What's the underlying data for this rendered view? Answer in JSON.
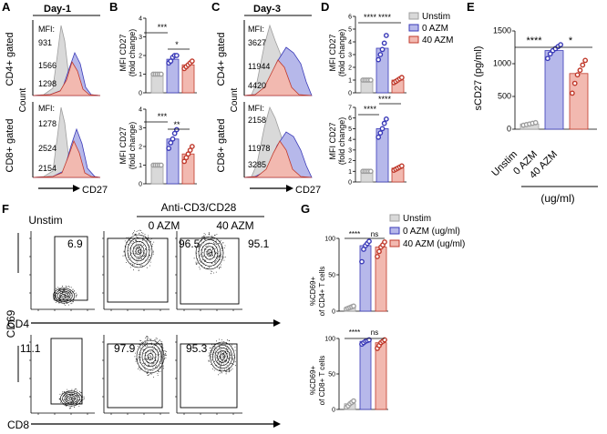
{
  "panels": {
    "A": {
      "letter": "A",
      "title": "Day-1",
      "row_top_label": "CD4+ gated",
      "row_bottom_label": "CD8+ gated",
      "y_label": "Count",
      "x_label": "CD27",
      "mfi_label": "MFI:",
      "top_mfi": [
        "931",
        "1566",
        "1298"
      ],
      "bottom_mfi": [
        "1278",
        "2524",
        "2154"
      ]
    },
    "B": {
      "letter": "B",
      "top_ylabel": "MFI CD27",
      "top_ylabel2": "(fold change)",
      "bottom_ylabel": "MFI CD27",
      "bottom_ylabel2": "(fold change)",
      "top_sig": [
        "***",
        "*"
      ],
      "bottom_sig": [
        "***",
        "**"
      ]
    },
    "C": {
      "letter": "C",
      "title": "Day-3",
      "row_top_label": "CD4+ gated",
      "row_bottom_label": "CD8+ gated",
      "y_label": "Count",
      "x_label": "CD27",
      "mfi_label": "MFI:",
      "top_mfi": [
        "3627",
        "11944",
        "4420"
      ],
      "bottom_mfi": [
        "2158",
        "11978",
        "3285"
      ]
    },
    "D": {
      "letter": "D",
      "top_ylabel": "MFI CD27",
      "top_ylabel2": "(fold change)",
      "bottom_ylabel": "MFI CD27",
      "bottom_ylabel2": "(fold change)",
      "top_sig": [
        "****",
        "****"
      ],
      "bottom_sig": [
        "****",
        "****"
      ]
    },
    "E": {
      "letter": "E",
      "ylabel": "sCD27 (pg/ml)",
      "sig": [
        "****",
        "*"
      ],
      "categories": [
        "Unstim",
        "0 AZM",
        "40 AZM"
      ],
      "unit": "(ug/ml)"
    },
    "F": {
      "letter": "F",
      "col_unstim": "Unstim",
      "group_header": "Anti-CD3/CD28",
      "col_0": "0 AZM",
      "col_40": "40 AZM",
      "y_label": "CD69",
      "x_top": "CD4",
      "x_bottom": "CD8",
      "top_pct": [
        "6.9",
        "96.5",
        "95.1"
      ],
      "bottom_pct": [
        "11.1",
        "97.9",
        "95.3"
      ]
    },
    "G": {
      "letter": "G",
      "top_ylabel": "%CD69+",
      "top_ylabel2": "of CD4+ T cells",
      "bottom_ylabel": "%CD69+",
      "bottom_ylabel2": "of CD8+ T cells",
      "top_sig": [
        "****",
        "ns"
      ],
      "bottom_sig": [
        "****",
        "ns"
      ]
    }
  },
  "legend_top": [
    "Unstim",
    "0 AZM",
    "40 AZM"
  ],
  "legend_bottom": [
    "Unstim",
    "0 AZM (ug/ml)",
    "40 AZM (ug/ml)"
  ],
  "colors": {
    "unstim": "#9e9e9e",
    "unstim_fill": "#d9d9d9",
    "azm0": "#3a3ab8",
    "azm0_fill": "#b6b8ea",
    "azm40": "#c0392b",
    "azm40_fill": "#f2b9b0"
  },
  "chart_data": [
    {
      "id": "B-top",
      "type": "bar",
      "categories": [
        "Unstim",
        "0 AZM",
        "40 AZM"
      ],
      "values": [
        1.0,
        1.8,
        1.5
      ],
      "ylim": [
        0,
        4
      ],
      "yticks": [
        "0",
        "1",
        "2",
        "3",
        "4"
      ],
      "ylabel": "MFI CD27 (fold change)",
      "points": [
        [
          1,
          1,
          1,
          1,
          1
        ],
        [
          1.6,
          1.7,
          1.9,
          2.0,
          2.0
        ],
        [
          1.3,
          1.4,
          1.5,
          1.6,
          1.7
        ]
      ]
    },
    {
      "id": "B-bottom",
      "type": "bar",
      "categories": [
        "Unstim",
        "0 AZM",
        "40 AZM"
      ],
      "values": [
        1.0,
        2.4,
        1.6
      ],
      "ylim": [
        0,
        4
      ],
      "yticks": [
        "0",
        "1",
        "2",
        "3",
        "4"
      ],
      "ylabel": "MFI CD27 (fold change)",
      "points": [
        [
          1,
          1,
          1,
          1,
          1
        ],
        [
          1.9,
          2.2,
          2.4,
          2.7,
          2.9
        ],
        [
          1.2,
          1.4,
          1.6,
          1.8,
          2.0
        ]
      ]
    },
    {
      "id": "D-top",
      "type": "bar",
      "categories": [
        "Unstim",
        "0 AZM",
        "40 AZM"
      ],
      "values": [
        1.0,
        3.5,
        1.0
      ],
      "ylim": [
        0,
        6
      ],
      "yticks": [
        "0",
        "1",
        "2",
        "3",
        "4",
        "5",
        "6"
      ],
      "ylabel": "MFI CD27 (fold change)",
      "points": [
        [
          1,
          1,
          1,
          1,
          1
        ],
        [
          2.6,
          3.0,
          3.4,
          3.9,
          4.5
        ],
        [
          0.8,
          0.9,
          1.0,
          1.1,
          1.2
        ]
      ]
    },
    {
      "id": "D-bottom",
      "type": "bar",
      "categories": [
        "Unstim",
        "0 AZM",
        "40 AZM"
      ],
      "values": [
        1.0,
        5.0,
        1.3
      ],
      "ylim": [
        0,
        7
      ],
      "yticks": [
        "0",
        "1",
        "2",
        "3",
        "4",
        "5",
        "6",
        "7"
      ],
      "ylabel": "MFI CD27 (fold change)",
      "points": [
        [
          1,
          1,
          1,
          1,
          1
        ],
        [
          4.2,
          4.6,
          5.0,
          5.5,
          5.9
        ],
        [
          1.1,
          1.2,
          1.3,
          1.4,
          1.5
        ]
      ]
    },
    {
      "id": "E",
      "type": "bar",
      "categories": [
        "Unstim",
        "0 AZM",
        "40 AZM"
      ],
      "values": [
        80,
        1200,
        850
      ],
      "ylim": [
        0,
        1500
      ],
      "yticks": [
        "0",
        "500",
        "1000",
        "1500"
      ],
      "ylabel": "sCD27 (pg/ml)",
      "points": [
        [
          60,
          70,
          80,
          90,
          100
        ],
        [
          1080,
          1150,
          1200,
          1230,
          1260,
          1290
        ],
        [
          550,
          700,
          830,
          900,
          980,
          1050
        ]
      ]
    },
    {
      "id": "G-top",
      "type": "bar",
      "categories": [
        "Unstim",
        "0 AZM (ug/ml)",
        "40 AZM (ug/ml)"
      ],
      "values": [
        5,
        90,
        88
      ],
      "ylim": [
        0,
        100
      ],
      "yticks": [
        "0",
        "50",
        "100"
      ],
      "ylabel": "%CD69+ of CD4+ T cells",
      "points": [
        [
          3,
          4,
          5,
          6,
          7
        ],
        [
          68,
          85,
          90,
          93,
          96
        ],
        [
          75,
          82,
          88,
          91,
          95
        ]
      ]
    },
    {
      "id": "G-bottom",
      "type": "bar",
      "categories": [
        "Unstim",
        "0 AZM (ug/ml)",
        "40 AZM (ug/ml)"
      ],
      "values": [
        8,
        96,
        94
      ],
      "ylim": [
        0,
        100
      ],
      "yticks": [
        "0",
        "50",
        "100"
      ],
      "ylabel": "%CD69+ of CD8+ T cells",
      "points": [
        [
          3,
          5,
          8,
          10,
          12
        ],
        [
          92,
          94,
          96,
          97,
          98
        ],
        [
          86,
          90,
          94,
          96,
          98
        ]
      ]
    }
  ]
}
